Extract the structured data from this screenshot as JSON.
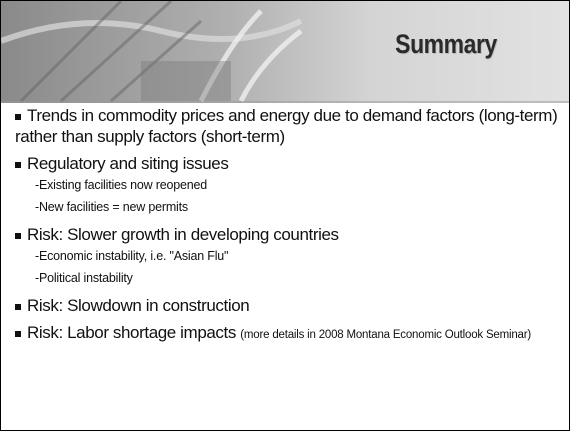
{
  "title": "Summary",
  "bullets": [
    {
      "text": "Trends in commodity prices and energy due to demand factors (long-term) rather than supply factors (short-term)"
    },
    {
      "text": "Regulatory and siting issues",
      "subitems": [
        "-Existing facilities now reopened",
        "-New facilities = new permits"
      ]
    },
    {
      "text": "Risk: Slower growth in developing countries",
      "subitems": [
        "-Economic instability, i.e. \"Asian Flu\"",
        "-Political instability"
      ]
    },
    {
      "text": "Risk: Slowdown in construction"
    },
    {
      "text": "Risk: Labor shortage impacts",
      "note": "(more details in 2008 Montana Economic Outlook Seminar)"
    }
  ]
}
